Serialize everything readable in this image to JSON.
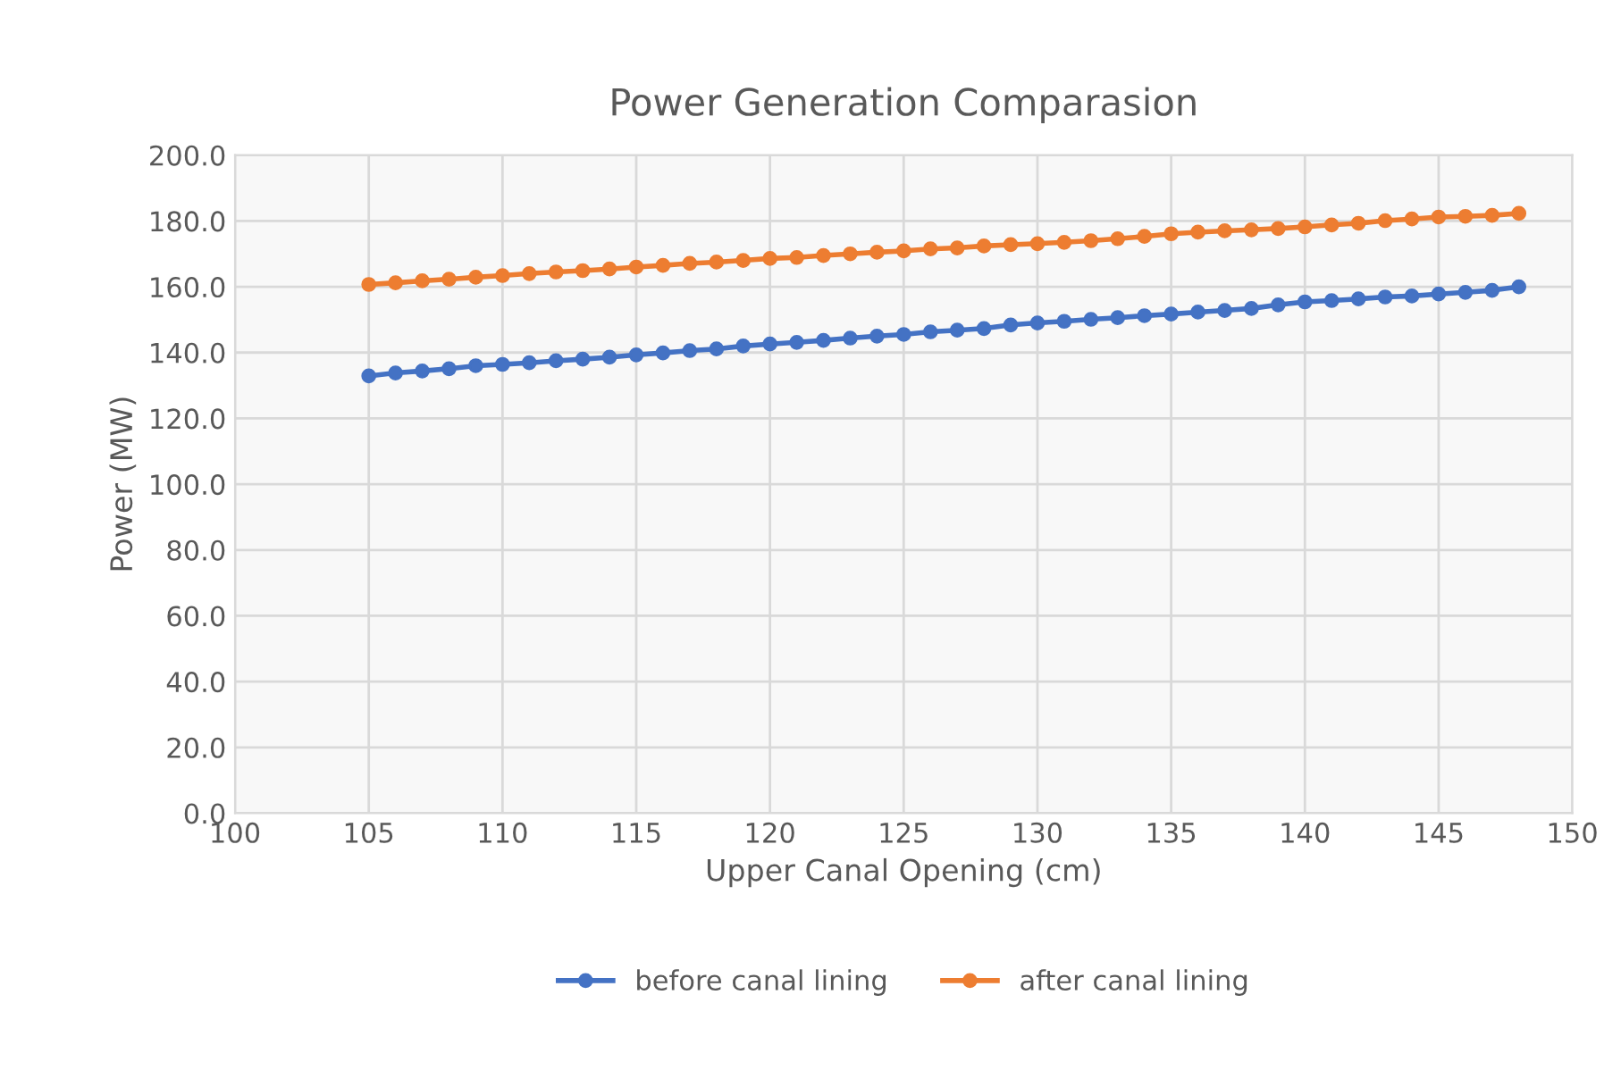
{
  "chart_data": {
    "type": "line",
    "title": "Power Generation Comparasion",
    "xlabel": "Upper Canal Opening (cm)",
    "ylabel": "Power (MW)",
    "x": [
      105,
      106,
      107,
      108,
      109,
      110,
      111,
      112,
      113,
      114,
      115,
      116,
      117,
      118,
      119,
      120,
      121,
      122,
      123,
      124,
      125,
      126,
      127,
      128,
      129,
      130,
      131,
      132,
      133,
      134,
      135,
      136,
      137,
      138,
      139,
      140,
      141,
      142,
      143,
      144,
      145,
      146,
      147,
      148
    ],
    "series": [
      {
        "name": "before canal lining",
        "color": "#4472c4",
        "values": [
          132.9,
          133.8,
          134.4,
          135.1,
          136.0,
          136.4,
          136.9,
          137.5,
          138.0,
          138.6,
          139.3,
          139.9,
          140.6,
          141.1,
          142.0,
          142.6,
          143.1,
          143.7,
          144.4,
          145.0,
          145.5,
          146.3,
          146.8,
          147.3,
          148.4,
          149.0,
          149.5,
          150.1,
          150.6,
          151.2,
          151.7,
          152.3,
          152.8,
          153.4,
          154.5,
          155.4,
          155.8,
          156.3,
          156.9,
          157.2,
          157.8,
          158.3,
          158.9,
          160.0
        ]
      },
      {
        "name": "after canal lining",
        "color": "#ed7d31",
        "values": [
          160.7,
          161.2,
          161.8,
          162.3,
          162.9,
          163.4,
          164.0,
          164.5,
          164.9,
          165.4,
          166.0,
          166.5,
          167.1,
          167.5,
          168.0,
          168.6,
          168.9,
          169.5,
          170.0,
          170.5,
          170.9,
          171.5,
          171.8,
          172.4,
          172.8,
          173.1,
          173.5,
          174.0,
          174.6,
          175.3,
          176.1,
          176.6,
          177.0,
          177.3,
          177.7,
          178.2,
          178.8,
          179.3,
          180.1,
          180.6,
          181.2,
          181.4,
          181.7,
          182.3
        ]
      }
    ],
    "xlim": [
      100,
      150
    ],
    "xticks": [
      100,
      105,
      110,
      115,
      120,
      125,
      130,
      135,
      140,
      145,
      150
    ],
    "ylim": [
      0,
      200
    ],
    "yticks": [
      {
        "value": 0,
        "label": "0.0"
      },
      {
        "value": 20,
        "label": "20.0"
      },
      {
        "value": 40,
        "label": "40.0"
      },
      {
        "value": 60,
        "label": "60.0"
      },
      {
        "value": 80,
        "label": "80.0"
      },
      {
        "value": 100,
        "label": "100.0"
      },
      {
        "value": 120,
        "label": "120.0"
      },
      {
        "value": 140,
        "label": "140.0"
      },
      {
        "value": 160,
        "label": "160.0"
      },
      {
        "value": 180,
        "label": "180.0"
      },
      {
        "value": 200,
        "label": "200.0"
      }
    ],
    "grid": true,
    "legend": "bottom",
    "marker": "circle",
    "line_style": "solid"
  }
}
